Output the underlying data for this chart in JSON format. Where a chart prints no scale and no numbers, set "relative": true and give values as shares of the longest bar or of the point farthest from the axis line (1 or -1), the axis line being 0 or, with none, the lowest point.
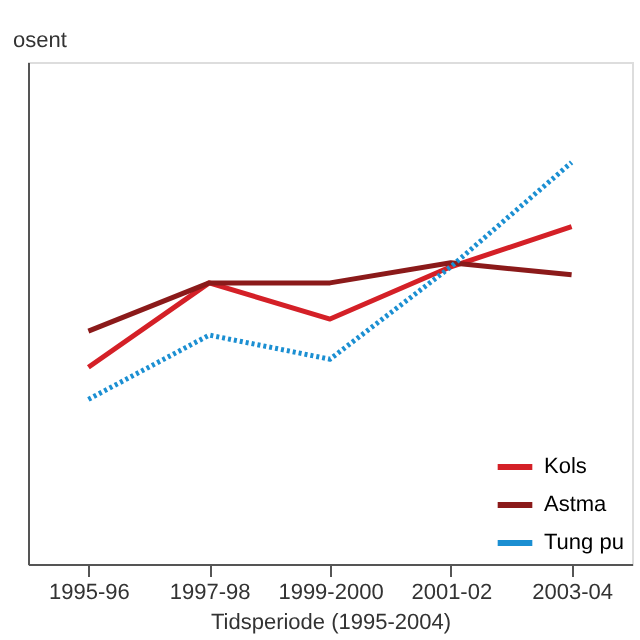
{
  "chart_data": {
    "type": "line",
    "ylabel": "osent",
    "xlabel": "Tidsperiode (1995-2004)",
    "relative": true,
    "categories": [
      "1995-96",
      "1997-98",
      "1999-2000",
      "2001-02",
      "2003-04"
    ],
    "series": [
      {
        "name": "Kols",
        "color": "#d42027",
        "values": [
          0.49,
          0.7,
          0.61,
          0.74,
          0.84
        ]
      },
      {
        "name": "Astma",
        "color": "#8b1a1a",
        "values": [
          0.58,
          0.7,
          0.7,
          0.75,
          0.72
        ]
      },
      {
        "name": "Tung pu",
        "color": "#1b8fd2",
        "values": [
          0.41,
          0.57,
          0.51,
          0.74,
          1.0
        ],
        "line_style": "dotted"
      }
    ],
    "legend": "bottom right",
    "grid": false,
    "marker": "none"
  }
}
